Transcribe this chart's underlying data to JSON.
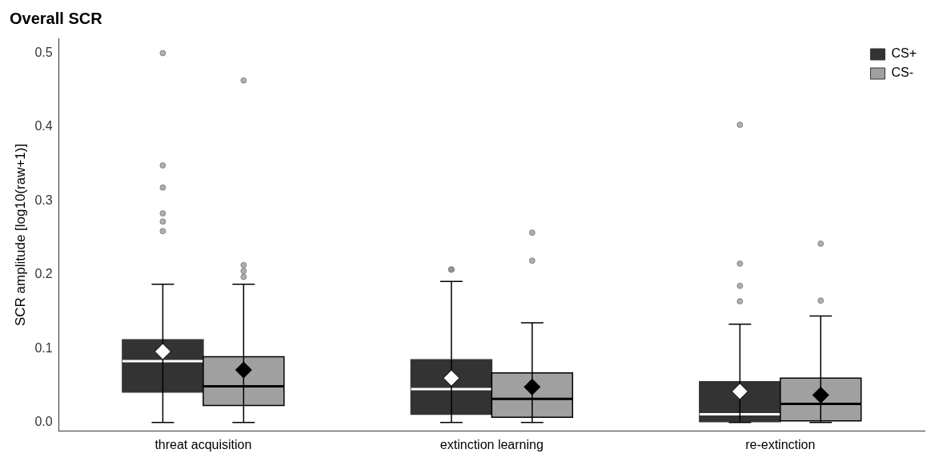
{
  "chart_data": {
    "type": "box",
    "title": "Overall SCR",
    "ylabel": "SCR amplitude [log10(raw+1)]",
    "categories": [
      "threat acquisition",
      "extinction learning",
      "re-extinction"
    ],
    "ylim": [
      -0.012,
      0.52
    ],
    "yticks": [
      {
        "value": 0,
        "label": "0.0"
      },
      {
        "value": 0.1,
        "label": "0.1"
      },
      {
        "value": 0.2,
        "label": "0.2"
      },
      {
        "value": 0.3,
        "label": "0.3"
      },
      {
        "value": 0.4,
        "label": "0.4"
      },
      {
        "value": 0.5,
        "label": "0.5"
      }
    ],
    "grid": false,
    "legend": "top right",
    "marker": "diamond",
    "series": [
      {
        "name": "CS+",
        "color": "#333333",
        "boxes": [
          {
            "low": 0,
            "q1": 0.041,
            "median": 0.083,
            "q3": 0.112,
            "high": 0.187,
            "mean": 0.096,
            "outliers": [
              0.5,
              0.348,
              0.318,
              0.283,
              0.272,
              0.259
            ]
          },
          {
            "low": 0,
            "q1": 0.011,
            "median": 0.045,
            "q3": 0.085,
            "high": 0.191,
            "mean": 0.06,
            "outliers": [
              0.207,
              0.207
            ]
          },
          {
            "low": 0,
            "q1": 0.001,
            "median": 0.011,
            "q3": 0.055,
            "high": 0.133,
            "mean": 0.042,
            "outliers": [
              0.403,
              0.215,
              0.185,
              0.164
            ]
          }
        ]
      },
      {
        "name": "CS-",
        "color": "#a0a0a0",
        "boxes": [
          {
            "low": 0,
            "q1": 0.023,
            "median": 0.049,
            "q3": 0.089,
            "high": 0.187,
            "mean": 0.071,
            "outliers": [
              0.463,
              0.213,
              0.205,
              0.197
            ]
          },
          {
            "low": 0,
            "q1": 0.007,
            "median": 0.032,
            "q3": 0.067,
            "high": 0.135,
            "mean": 0.048,
            "outliers": [
              0.257,
              0.219
            ]
          },
          {
            "low": 0,
            "q1": 0.002,
            "median": 0.025,
            "q3": 0.06,
            "high": 0.144,
            "mean": 0.037,
            "outliers": [
              0.242,
              0.165
            ]
          }
        ]
      }
    ]
  }
}
